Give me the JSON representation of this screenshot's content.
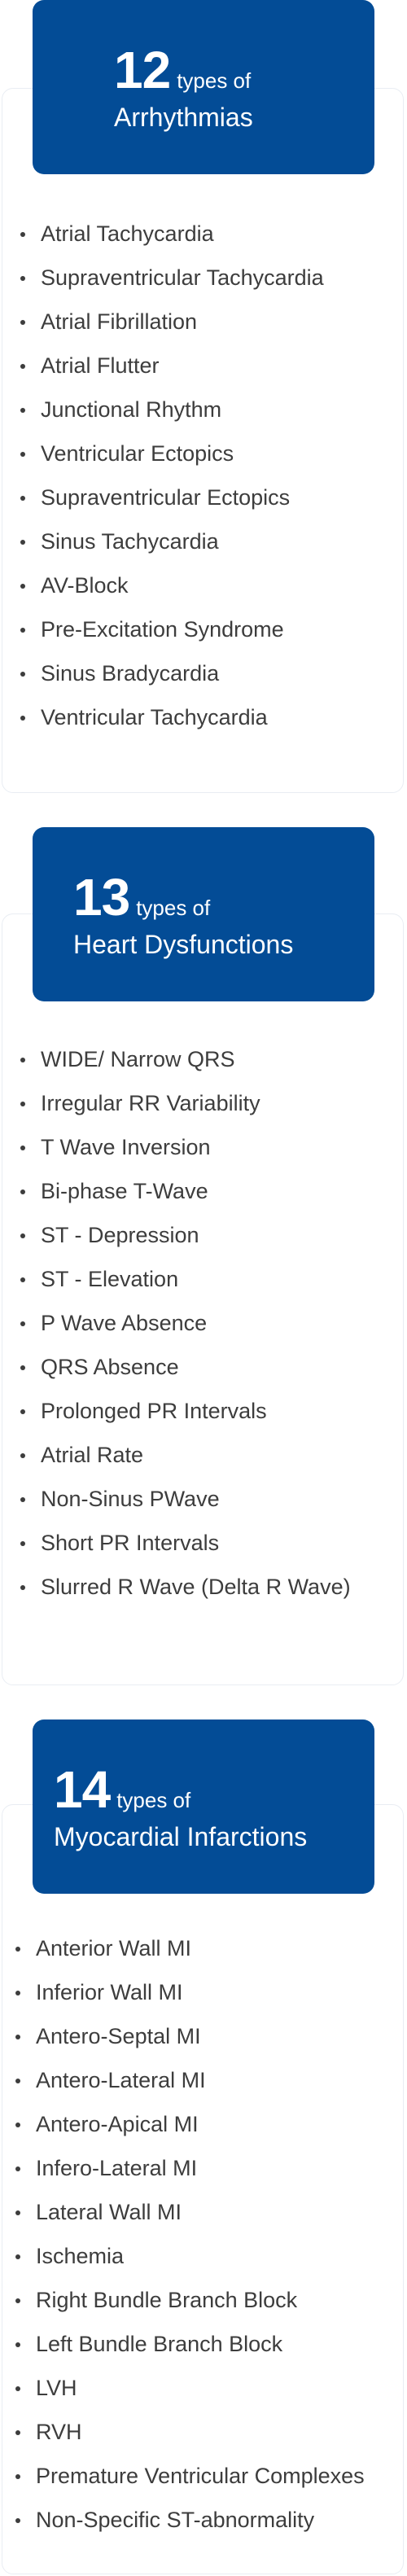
{
  "sections": [
    {
      "count": "12",
      "types_label": "types of",
      "title": "Arrhythmias",
      "items": [
        "Atrial Tachycardia",
        "Supraventricular Tachycardia",
        "Atrial Fibrillation",
        "Atrial Flutter",
        "Junctional Rhythm",
        "Ventricular Ectopics",
        "Supraventricular Ectopics",
        "Sinus Tachycardia",
        "AV-Block",
        "Pre-Excitation Syndrome",
        "Sinus Bradycardia",
        "Ventricular Tachycardia"
      ]
    },
    {
      "count": "13",
      "types_label": "types of",
      "title": "Heart Dysfunctions",
      "items": [
        "WIDE/ Narrow QRS",
        "Irregular RR Variability",
        "T Wave Inversion",
        "Bi-phase T-Wave",
        "ST - Depression",
        "ST - Elevation",
        "P Wave Absence",
        "QRS Absence",
        "Prolonged PR Intervals",
        "Atrial Rate",
        "Non-Sinus PWave",
        "Short PR Intervals",
        "Slurred R Wave (Delta R Wave)"
      ]
    },
    {
      "count": "14",
      "types_label": "types of",
      "title": "Myocardial Infarctions",
      "items": [
        "Anterior Wall MI",
        "Inferior Wall MI",
        "Antero-Septal MI",
        "Antero-Lateral MI",
        "Antero-Apical MI",
        "Infero-Lateral MI",
        "Lateral Wall MI",
        "Ischemia",
        "Right Bundle Branch Block",
        "Left Bundle Branch Block",
        "LVH",
        "RVH",
        "Premature Ventricular Complexes",
        "Non-Specific ST-abnormality"
      ]
    }
  ],
  "colors": {
    "header_bg": "#034c96",
    "header_text": "#ffffff",
    "item_text": "#3d3d3d",
    "card_border": "#e9edf3"
  }
}
